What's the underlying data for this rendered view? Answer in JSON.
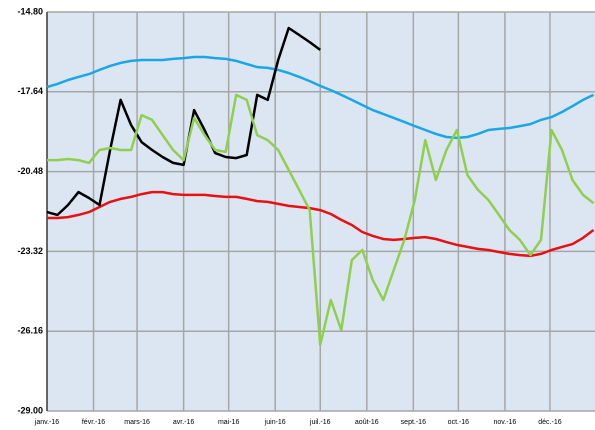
{
  "chart_data": {
    "type": "line",
    "x": [
      0,
      7,
      14,
      21,
      28,
      35,
      42,
      49,
      56,
      63,
      70,
      77,
      84,
      91,
      98,
      105,
      112,
      119,
      126,
      133,
      140,
      147,
      154,
      161,
      168,
      175,
      182,
      189,
      196,
      203,
      210,
      217,
      224,
      231,
      238,
      245,
      252,
      259,
      266,
      273,
      280,
      287,
      294,
      301,
      308,
      315,
      322,
      329,
      336,
      343,
      350,
      357,
      364
    ],
    "xlim": [
      0,
      365
    ],
    "xticks": [
      {
        "value": 0,
        "label": "janv.-16"
      },
      {
        "value": 31,
        "label": "févr.-16"
      },
      {
        "value": 60,
        "label": "mars-16"
      },
      {
        "value": 91,
        "label": "avr.-16"
      },
      {
        "value": 121,
        "label": "mai-16"
      },
      {
        "value": 152,
        "label": "juin-16"
      },
      {
        "value": 182,
        "label": "juil.-16"
      },
      {
        "value": 213,
        "label": "août-16"
      },
      {
        "value": 244,
        "label": "sept.-16"
      },
      {
        "value": 274,
        "label": "oct.-16"
      },
      {
        "value": 305,
        "label": "nov.-16"
      },
      {
        "value": 335,
        "label": "déc.-16"
      }
    ],
    "ylim": [
      -29,
      -14.8
    ],
    "yticks": [
      {
        "value": -29,
        "label": "-29.00"
      },
      {
        "value": -26.16,
        "label": "-26.16"
      },
      {
        "value": -23.32,
        "label": "-23.32"
      },
      {
        "value": -20.48,
        "label": "-20.48"
      },
      {
        "value": -17.64,
        "label": "-17.64"
      },
      {
        "value": -14.8,
        "label": "-14.80"
      }
    ],
    "grid": true,
    "series": [
      {
        "color": "#1aa7e8",
        "values": [
          -17.47,
          -17.36,
          -17.22,
          -17.11,
          -17.01,
          -16.86,
          -16.72,
          -16.61,
          -16.54,
          -16.51,
          -16.51,
          -16.51,
          -16.47,
          -16.44,
          -16.4,
          -16.4,
          -16.44,
          -16.47,
          -16.54,
          -16.65,
          -16.76,
          -16.79,
          -16.86,
          -16.97,
          -17.11,
          -17.26,
          -17.43,
          -17.58,
          -17.75,
          -17.93,
          -18.11,
          -18.29,
          -18.43,
          -18.57,
          -18.71,
          -18.86,
          -19.0,
          -19.14,
          -19.25,
          -19.28,
          -19.25,
          -19.14,
          -19.0,
          -18.96,
          -18.93,
          -18.86,
          -18.79,
          -18.64,
          -18.54,
          -18.36,
          -18.15,
          -17.93,
          -17.75
        ]
      },
      {
        "color": "#e81010",
        "values": [
          -22.13,
          -22.13,
          -22.1,
          -22.02,
          -21.92,
          -21.74,
          -21.56,
          -21.45,
          -21.38,
          -21.28,
          -21.21,
          -21.21,
          -21.28,
          -21.31,
          -21.31,
          -21.31,
          -21.35,
          -21.38,
          -21.38,
          -21.45,
          -21.53,
          -21.56,
          -21.63,
          -21.7,
          -21.74,
          -21.78,
          -21.85,
          -21.99,
          -22.2,
          -22.38,
          -22.63,
          -22.77,
          -22.88,
          -22.91,
          -22.88,
          -22.84,
          -22.81,
          -22.88,
          -22.99,
          -23.09,
          -23.16,
          -23.23,
          -23.27,
          -23.34,
          -23.41,
          -23.45,
          -23.48,
          -23.41,
          -23.27,
          -23.16,
          -23.06,
          -22.84,
          -22.56
        ]
      },
      {
        "color": "#000000",
        "values": [
          -21.92,
          -22.02,
          -21.67,
          -21.21,
          -21.42,
          -21.67,
          -19.71,
          -17.93,
          -18.82,
          -19.43,
          -19.71,
          -19.96,
          -20.17,
          -20.24,
          -18.29,
          -19.0,
          -19.82,
          -19.96,
          -20.0,
          -19.89,
          -17.75,
          -17.93,
          -16.51,
          -15.37,
          -15.62,
          -15.87,
          -16.15,
          null,
          null,
          null,
          null,
          null,
          null,
          null,
          null,
          null,
          null,
          null,
          null,
          null,
          null,
          null,
          null,
          null,
          null,
          null,
          null,
          null,
          null,
          null,
          null,
          null,
          null
        ]
      },
      {
        "color": "#8ed04e",
        "values": [
          -20.07,
          -20.07,
          -20.03,
          -20.07,
          -20.17,
          -19.71,
          -19.64,
          -19.71,
          -19.71,
          -18.47,
          -18.64,
          -19.18,
          -19.71,
          -20.07,
          -18.57,
          -19.18,
          -19.71,
          -19.78,
          -17.75,
          -17.93,
          -19.18,
          -19.36,
          -19.71,
          -20.42,
          -21.13,
          -21.85,
          -26.65,
          -25.05,
          -26.12,
          -23.63,
          -23.27,
          -24.34,
          -25.05,
          -23.98,
          -22.91,
          -21.49,
          -19.36,
          -20.78,
          -19.71,
          -19.0,
          -20.6,
          -21.13,
          -21.49,
          -22.02,
          -22.56,
          -22.91,
          -23.45,
          -22.91,
          -19.0,
          -19.71,
          -20.78,
          -21.31,
          -21.6
        ]
      }
    ]
  }
}
